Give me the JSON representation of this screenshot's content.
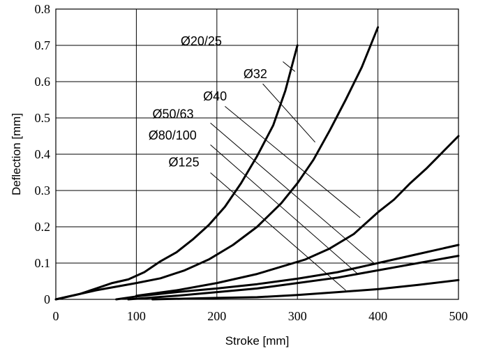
{
  "chart_data": {
    "type": "line",
    "title": "",
    "xlabel": "Stroke [mm]",
    "ylabel": "Deflection [mm]",
    "xlim": [
      0,
      500
    ],
    "ylim": [
      0,
      0.8
    ],
    "x_ticks": [
      "0",
      "100",
      "200",
      "300",
      "400",
      "500"
    ],
    "y_ticks": [
      "0",
      "0.1",
      "0.2",
      "0.3",
      "0.4",
      "0.5",
      "0.6",
      "0.7",
      "0.8"
    ],
    "grid": true,
    "series": [
      {
        "name": "Ø20/25",
        "points": [
          [
            0,
            0
          ],
          [
            30,
            0.015
          ],
          [
            50,
            0.03
          ],
          [
            70,
            0.045
          ],
          [
            90,
            0.055
          ],
          [
            110,
            0.075
          ],
          [
            130,
            0.105
          ],
          [
            150,
            0.13
          ],
          [
            170,
            0.165
          ],
          [
            190,
            0.205
          ],
          [
            210,
            0.255
          ],
          [
            230,
            0.32
          ],
          [
            250,
            0.395
          ],
          [
            270,
            0.48
          ],
          [
            285,
            0.575
          ],
          [
            300,
            0.7
          ]
        ]
      },
      {
        "name": "Ø32",
        "points": [
          [
            0,
            0
          ],
          [
            50,
            0.025
          ],
          [
            100,
            0.045
          ],
          [
            130,
            0.058
          ],
          [
            160,
            0.08
          ],
          [
            190,
            0.11
          ],
          [
            220,
            0.15
          ],
          [
            250,
            0.2
          ],
          [
            280,
            0.265
          ],
          [
            300,
            0.32
          ],
          [
            320,
            0.385
          ],
          [
            340,
            0.465
          ],
          [
            360,
            0.55
          ],
          [
            380,
            0.64
          ],
          [
            400,
            0.75
          ]
        ]
      },
      {
        "name": "Ø40",
        "points": [
          [
            100,
            0.01
          ],
          [
            150,
            0.025
          ],
          [
            200,
            0.045
          ],
          [
            250,
            0.07
          ],
          [
            280,
            0.09
          ],
          [
            310,
            0.11
          ],
          [
            340,
            0.14
          ],
          [
            370,
            0.18
          ],
          [
            400,
            0.24
          ],
          [
            420,
            0.275
          ],
          [
            440,
            0.32
          ],
          [
            460,
            0.36
          ],
          [
            480,
            0.405
          ],
          [
            500,
            0.45
          ]
        ]
      },
      {
        "name": "Ø50/63",
        "points": [
          [
            75,
            0
          ],
          [
            100,
            0.008
          ],
          [
            150,
            0.02
          ],
          [
            200,
            0.03
          ],
          [
            250,
            0.042
          ],
          [
            300,
            0.057
          ],
          [
            350,
            0.075
          ],
          [
            400,
            0.1
          ],
          [
            450,
            0.125
          ],
          [
            500,
            0.15
          ]
        ]
      },
      {
        "name": "Ø80/100",
        "points": [
          [
            90,
            0
          ],
          [
            150,
            0.01
          ],
          [
            200,
            0.02
          ],
          [
            250,
            0.03
          ],
          [
            300,
            0.045
          ],
          [
            350,
            0.06
          ],
          [
            400,
            0.08
          ],
          [
            450,
            0.1
          ],
          [
            500,
            0.12
          ]
        ]
      },
      {
        "name": "Ø125",
        "points": [
          [
            120,
            0
          ],
          [
            200,
            0.004
          ],
          [
            250,
            0.006
          ],
          [
            300,
            0.012
          ],
          [
            350,
            0.02
          ],
          [
            400,
            0.028
          ],
          [
            450,
            0.04
          ],
          [
            500,
            0.053
          ]
        ]
      }
    ],
    "annotations": [
      {
        "text": "Ø20/25",
        "label_at": [
          155,
          0.7
        ],
        "line_from": [
          282,
          0.655
        ],
        "line_to": [
          297,
          0.628
        ]
      },
      {
        "text": "Ø32",
        "label_at": [
          233,
          0.61
        ],
        "line_from": [
          257,
          0.594
        ],
        "line_to": [
          322,
          0.433
        ]
      },
      {
        "text": "Ø40",
        "label_at": [
          183,
          0.548
        ],
        "line_from": [
          210,
          0.532
        ],
        "line_to": [
          378,
          0.225
        ]
      },
      {
        "text": "Ø50/63",
        "label_at": [
          120,
          0.499
        ],
        "line_from": [
          192,
          0.486
        ],
        "line_to": [
          395,
          0.1
        ]
      },
      {
        "text": "Ø80/100",
        "label_at": [
          115,
          0.44
        ],
        "line_from": [
          192,
          0.426
        ],
        "line_to": [
          375,
          0.07
        ]
      },
      {
        "text": "Ø125",
        "label_at": [
          140,
          0.366
        ],
        "line_from": [
          192,
          0.349
        ],
        "line_to": [
          360,
          0.025
        ]
      }
    ]
  }
}
